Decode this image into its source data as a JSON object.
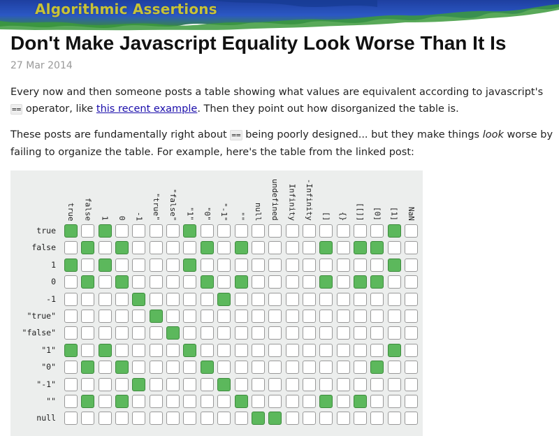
{
  "site": {
    "title": "Algorithmic Assertions"
  },
  "post": {
    "title": "Don't Make Javascript Equality Look Worse Than It Is",
    "date": "27 Mar 2014",
    "p1": {
      "before": "Every now and then someone posts a table showing what values are equivalent according to javascript's ",
      "code": "==",
      "mid": " operator, like ",
      "link": "this recent example",
      "after": ". Then they point out how disorganized the table is."
    },
    "p2": {
      "before": "These posts are fundamentally right about ",
      "code": "==",
      "mid": " being poorly designed... but they make things ",
      "em": "look",
      "after": " worse by failing to organize the table. For example, here's the table from the linked post:"
    }
  },
  "table": {
    "columns": [
      "true",
      "false",
      "1",
      "0",
      "-1",
      "\"true\"",
      "\"false\"",
      "\"1\"",
      "\"0\"",
      "\"-1\"",
      "\"\"",
      "null",
      "undefined",
      "Infinity",
      "-Infinity",
      "[]",
      "{}",
      "[[]]",
      "[0]",
      "[1]",
      "NaN"
    ],
    "rows": [
      "true",
      "false",
      "1",
      "0",
      "-1",
      "\"true\"",
      "\"false\"",
      "\"1\"",
      "\"0\"",
      "\"-1\"",
      "\"\"",
      "null"
    ],
    "matrix": [
      [
        1,
        0,
        1,
        0,
        0,
        0,
        0,
        1,
        0,
        0,
        0,
        0,
        0,
        0,
        0,
        0,
        0,
        0,
        0,
        1,
        0
      ],
      [
        0,
        1,
        0,
        1,
        0,
        0,
        0,
        0,
        1,
        0,
        1,
        0,
        0,
        0,
        0,
        1,
        0,
        1,
        1,
        0,
        0
      ],
      [
        1,
        0,
        1,
        0,
        0,
        0,
        0,
        1,
        0,
        0,
        0,
        0,
        0,
        0,
        0,
        0,
        0,
        0,
        0,
        1,
        0
      ],
      [
        0,
        1,
        0,
        1,
        0,
        0,
        0,
        0,
        1,
        0,
        1,
        0,
        0,
        0,
        0,
        1,
        0,
        1,
        1,
        0,
        0
      ],
      [
        0,
        0,
        0,
        0,
        1,
        0,
        0,
        0,
        0,
        1,
        0,
        0,
        0,
        0,
        0,
        0,
        0,
        0,
        0,
        0,
        0
      ],
      [
        0,
        0,
        0,
        0,
        0,
        1,
        0,
        0,
        0,
        0,
        0,
        0,
        0,
        0,
        0,
        0,
        0,
        0,
        0,
        0,
        0
      ],
      [
        0,
        0,
        0,
        0,
        0,
        0,
        1,
        0,
        0,
        0,
        0,
        0,
        0,
        0,
        0,
        0,
        0,
        0,
        0,
        0,
        0
      ],
      [
        1,
        0,
        1,
        0,
        0,
        0,
        0,
        1,
        0,
        0,
        0,
        0,
        0,
        0,
        0,
        0,
        0,
        0,
        0,
        1,
        0
      ],
      [
        0,
        1,
        0,
        1,
        0,
        0,
        0,
        0,
        1,
        0,
        0,
        0,
        0,
        0,
        0,
        0,
        0,
        0,
        1,
        0,
        0
      ],
      [
        0,
        0,
        0,
        0,
        1,
        0,
        0,
        0,
        0,
        1,
        0,
        0,
        0,
        0,
        0,
        0,
        0,
        0,
        0,
        0,
        0
      ],
      [
        0,
        1,
        0,
        1,
        0,
        0,
        0,
        0,
        0,
        0,
        1,
        0,
        0,
        0,
        0,
        1,
        0,
        1,
        0,
        0,
        0
      ],
      [
        0,
        0,
        0,
        0,
        0,
        0,
        0,
        0,
        0,
        0,
        0,
        1,
        1,
        0,
        0,
        0,
        0,
        0,
        0,
        0,
        0
      ]
    ],
    "colors": {
      "on": "#5cb85c",
      "off": "#ffffff",
      "panel": "#eceeed"
    }
  }
}
